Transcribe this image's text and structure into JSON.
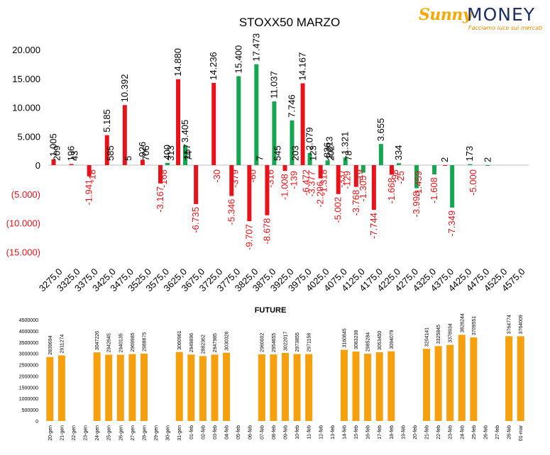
{
  "brand": {
    "name_part1": "Sunny",
    "name_part2": "MONEY",
    "tagline": "Facciamo luce sui mercati"
  },
  "colors": {
    "call": "#e8131a",
    "put": "#14a650",
    "future": "#f5a00f",
    "axis_neg_label": "#e8131a"
  },
  "chart_data": [
    {
      "type": "bar",
      "title": "STOXX50 MARZO",
      "xlabel": "",
      "ylabel": "",
      "ylim": [
        -15000,
        20000
      ],
      "yticks": [
        {
          "value": 20000,
          "label": "20.000"
        },
        {
          "value": 15000,
          "label": "15.000"
        },
        {
          "value": 10000,
          "label": "10.000"
        },
        {
          "value": 5000,
          "label": "5.000"
        },
        {
          "value": 0,
          "label": "0"
        },
        {
          "value": -5000,
          "label": "(5.000)"
        },
        {
          "value": -10000,
          "label": "(10.000)"
        },
        {
          "value": -15000,
          "label": "(15.000)"
        }
      ],
      "grid": false,
      "categories": [
        "3275,0",
        "3325,0",
        "3375,0",
        "3425,0",
        "3475,0",
        "3525,0",
        "3575,0",
        "3625,0",
        "3675,0",
        "3725,0",
        "3775,0",
        "3825,0",
        "3875,0",
        "3925,0",
        "3975,0",
        "4025,0",
        "4075,0",
        "4125,0",
        "4175,0",
        "4225,0",
        "4275,0",
        "4325,0",
        "4375,0",
        "4425,0",
        "4475,0",
        "4525,0",
        "4575,0"
      ],
      "series": [
        {
          "color": "call",
          "values": [
            1005,
            196,
            -1941,
            5185,
            10392,
            926,
            -3167,
            14880,
            -6735,
            14236,
            -5346,
            -9707,
            -8678,
            -1008,
            14167,
            -2296,
            -5002,
            -3768,
            -7744,
            -1668,
            null,
            null,
            2,
            null,
            null,
            null,
            null
          ],
          "labels": [
            "1.005",
            "196",
            "-1.941",
            "5.185",
            "10.392",
            "926",
            "-3.167",
            "14.880",
            "-6.735",
            "14.236",
            "-5.346",
            "-9.707",
            "-8.678",
            "-1.008",
            "14.167",
            "-2.296",
            "-5.002",
            "-3.768",
            "-7.744",
            "-1.668",
            "",
            "",
            "2",
            "",
            "",
            "",
            ""
          ],
          "labels_b": [
            "209",
            "43",
            "-18",
            "585",
            "5",
            "706",
            "-168",
            "",
            "",
            "-30",
            "-379",
            "-60",
            "-316",
            "",
            "-6.472",
            "-1.318",
            "-337",
            "-19",
            "",
            "-98",
            "",
            "",
            "",
            "",
            "",
            "",
            ""
          ]
        },
        {
          "color": "put",
          "values": [
            null,
            null,
            null,
            null,
            null,
            null,
            400,
            3405,
            null,
            null,
            15400,
            17473,
            11037,
            7746,
            2079,
            826,
            1321,
            -1305,
            3655,
            334,
            -3998,
            -1608,
            -7349,
            173,
            2,
            null,
            null
          ],
          "labels": [
            "",
            "",
            "",
            "",
            "",
            "",
            "400",
            "3.405",
            "",
            "",
            "15.400",
            "17.473",
            "11.037",
            "7.746",
            "2.079",
            "826",
            "1.321",
            "-1.305",
            "3.655",
            "334",
            "-3.998",
            "-1.608",
            "-7.349",
            "173",
            "2",
            "",
            ""
          ],
          "labels_b": [
            "",
            "",
            "",
            "",
            "",
            "",
            "313",
            "74",
            "",
            "",
            "",
            "7",
            "545",
            "203",
            "123",
            "202",
            "78",
            "",
            "",
            "",
            "",
            "",
            "",
            "-5.000",
            "",
            "",
            ""
          ]
        }
      ],
      "call_labels_extra": [
        "-139",
        "-3.377",
        "-129",
        "-25",
        "-1.459"
      ],
      "put_labels_extra": [
        "157",
        "1.213"
      ]
    },
    {
      "type": "bar",
      "title": "FUTURE",
      "xlabel": "",
      "ylabel": "",
      "ylim": [
        0,
        4500000
      ],
      "yticks": [
        {
          "value": 4500000,
          "label": "4500000"
        },
        {
          "value": 4000000,
          "label": "4000000"
        },
        {
          "value": 3500000,
          "label": "3500000"
        },
        {
          "value": 3000000,
          "label": "3000000"
        },
        {
          "value": 2500000,
          "label": "2500000"
        },
        {
          "value": 2000000,
          "label": "2000000"
        },
        {
          "value": 1500000,
          "label": "1500000"
        },
        {
          "value": 1000000,
          "label": "1000000"
        },
        {
          "value": 500000,
          "label": "500000"
        },
        {
          "value": 0,
          "label": "0"
        }
      ],
      "grid": false,
      "categories": [
        "20-gen",
        "21-gen",
        "22-gen",
        "23-gen",
        "24-gen",
        "25-gen",
        "26-gen",
        "27-gen",
        "28-gen",
        "29-gen",
        "30-gen",
        "31-gen",
        "01-feb",
        "02-feb",
        "03-feb",
        "04-feb",
        "05-feb",
        "06-feb",
        "07-feb",
        "08-feb",
        "09-feb",
        "10-feb",
        "11-feb",
        "12-feb",
        "13-feb",
        "14-feb",
        "15-feb",
        "16-feb",
        "17-feb",
        "18-feb",
        "19-feb",
        "20-feb",
        "21-feb",
        "22-feb",
        "23-feb",
        "24-feb",
        "25-feb",
        "26-feb",
        "27-feb",
        "28-feb",
        "01-mar"
      ],
      "values": [
        2839694,
        2911274,
        null,
        null,
        3047226,
        2942645,
        2940135,
        2969985,
        2988875,
        null,
        null,
        3060961,
        2949896,
        2882362,
        2947985,
        3030326,
        null,
        null,
        2960002,
        2954655,
        3022017,
        2973855,
        2971158,
        null,
        null,
        3160845,
        3083238,
        2985284,
        3053450,
        3094079,
        null,
        null,
        3204141,
        3325845,
        3378934,
        3826244,
        3709551,
        null,
        null,
        3764774,
        3764009
      ]
    }
  ]
}
